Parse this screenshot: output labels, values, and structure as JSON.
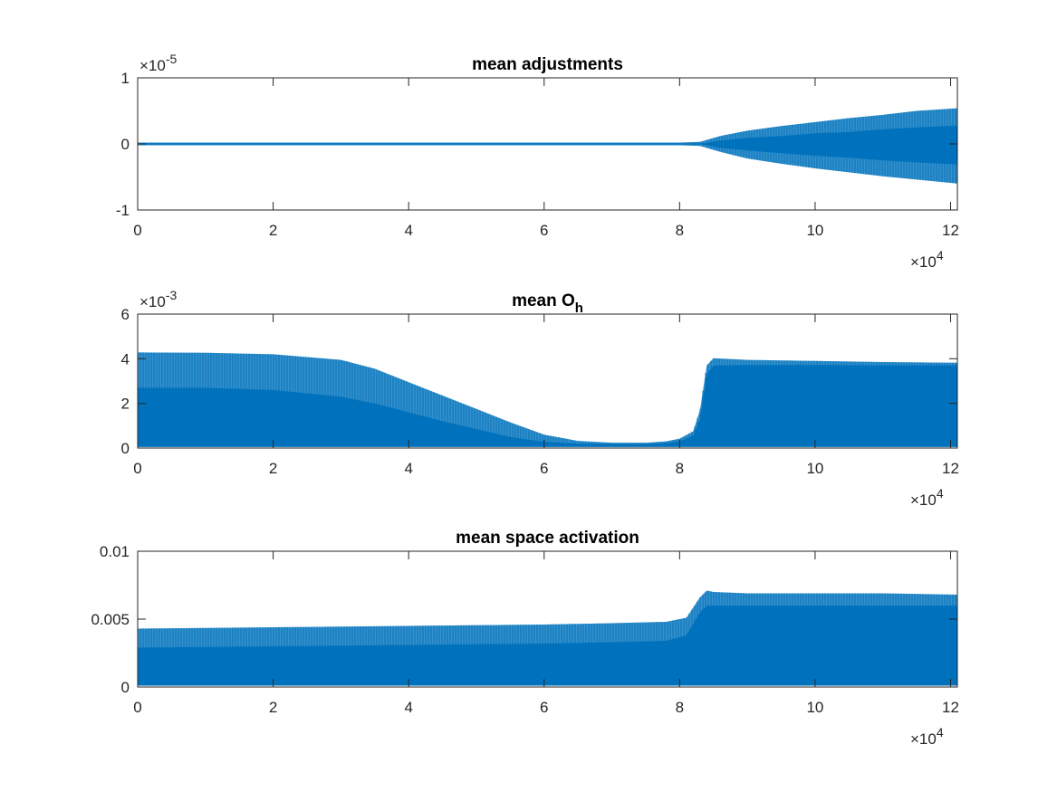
{
  "chart_data": [
    {
      "type": "area",
      "title": "mean adjustments",
      "title_sub": "",
      "x_ticks": [
        "0",
        "2",
        "4",
        "6",
        "8",
        "10",
        "12"
      ],
      "y_ticks": [
        "-1",
        "0",
        "1"
      ],
      "y_exponent": "-5",
      "x_exponent": "4",
      "xlim": [
        0,
        12.1
      ],
      "ylim": [
        -1,
        1
      ],
      "color": "#0072BD",
      "series": [
        {
          "x": [
            0,
            8,
            8.3,
            8.6,
            9,
            9.5,
            10,
            10.5,
            11,
            11.5,
            12.1
          ],
          "upper": [
            0.02,
            0.02,
            0.03,
            0.12,
            0.2,
            0.27,
            0.33,
            0.39,
            0.44,
            0.5,
            0.54
          ],
          "lower": [
            -0.02,
            -0.02,
            -0.03,
            -0.12,
            -0.22,
            -0.3,
            -0.37,
            -0.43,
            -0.49,
            -0.54,
            -0.6
          ],
          "dense_upper": [
            0.0,
            0.0,
            0.0,
            0.05,
            0.09,
            0.12,
            0.16,
            0.18,
            0.22,
            0.25,
            0.28
          ],
          "dense_lower": [
            0.0,
            0.0,
            0.0,
            -0.06,
            -0.1,
            -0.14,
            -0.18,
            -0.21,
            -0.25,
            -0.28,
            -0.31
          ]
        }
      ]
    },
    {
      "type": "area",
      "title": "mean O",
      "title_sub": "h",
      "x_ticks": [
        "0",
        "2",
        "4",
        "6",
        "8",
        "10",
        "12"
      ],
      "y_ticks": [
        "0",
        "2",
        "4",
        "6"
      ],
      "y_exponent": "-3",
      "x_exponent": "4",
      "xlim": [
        0,
        12.1
      ],
      "ylim": [
        0,
        6
      ],
      "color": "#0072BD",
      "series": [
        {
          "x": [
            0,
            1,
            2,
            3,
            3.5,
            4,
            4.5,
            5,
            5.5,
            6,
            6.5,
            7,
            7.5,
            7.8,
            8,
            8.2,
            8.3,
            8.4,
            8.5,
            9,
            10,
            11,
            12.1
          ],
          "upper": [
            4.28,
            4.27,
            4.2,
            3.95,
            3.55,
            2.95,
            2.35,
            1.75,
            1.15,
            0.6,
            0.32,
            0.24,
            0.24,
            0.3,
            0.42,
            0.75,
            1.7,
            3.7,
            4.02,
            3.95,
            3.9,
            3.85,
            3.82
          ],
          "lower": [
            0.05,
            0.05,
            0.05,
            0.05,
            0.05,
            0.05,
            0.05,
            0.05,
            0.05,
            0.05,
            0.05,
            0.05,
            0.05,
            0.05,
            0.05,
            0.05,
            0.05,
            0.05,
            0.05,
            0.05,
            0.05,
            0.05,
            0.05
          ],
          "dense_upper": [
            2.7,
            2.7,
            2.6,
            2.3,
            2.0,
            1.6,
            1.2,
            0.85,
            0.5,
            0.28,
            0.2,
            0.18,
            0.18,
            0.22,
            0.3,
            0.55,
            1.3,
            3.3,
            3.7,
            3.72,
            3.72,
            3.7,
            3.7
          ],
          "dense_lower": [
            0.05,
            0.05,
            0.05,
            0.05,
            0.05,
            0.05,
            0.05,
            0.05,
            0.05,
            0.05,
            0.05,
            0.05,
            0.05,
            0.05,
            0.05,
            0.05,
            0.05,
            0.05,
            0.05,
            0.05,
            0.05,
            0.05,
            0.05
          ]
        }
      ]
    },
    {
      "type": "area",
      "title": "mean space activation",
      "title_sub": "",
      "x_ticks": [
        "0",
        "2",
        "4",
        "6",
        "8",
        "10",
        "12"
      ],
      "y_ticks": [
        "0",
        "0.005",
        "0.01"
      ],
      "y_exponent": "",
      "x_exponent": "4",
      "xlim": [
        0,
        12.1
      ],
      "ylim": [
        0,
        0.01
      ],
      "color": "#0072BD",
      "series": [
        {
          "x": [
            0,
            2,
            4,
            6,
            7,
            7.8,
            8.1,
            8.3,
            8.4,
            8.5,
            9,
            10,
            11,
            12.1
          ],
          "upper": [
            0.0043,
            0.0044,
            0.0045,
            0.0046,
            0.0047,
            0.0048,
            0.0051,
            0.0066,
            0.0071,
            0.007,
            0.0069,
            0.0069,
            0.0069,
            0.0068
          ],
          "lower": [
            0.0001,
            0.0001,
            0.0001,
            0.0001,
            0.0001,
            0.0001,
            0.0001,
            0.0001,
            0.0001,
            0.0001,
            0.0001,
            0.0001,
            0.0001,
            0.0001
          ],
          "dense_upper": [
            0.0029,
            0.003,
            0.0031,
            0.0032,
            0.0033,
            0.0034,
            0.0038,
            0.0055,
            0.006,
            0.006,
            0.006,
            0.006,
            0.006,
            0.006
          ],
          "dense_lower": [
            0.0001,
            0.0001,
            0.0001,
            0.0001,
            0.0001,
            0.0001,
            0.0001,
            0.0001,
            0.0001,
            0.0001,
            0.0001,
            0.0001,
            0.0001,
            0.0001
          ]
        }
      ]
    }
  ]
}
